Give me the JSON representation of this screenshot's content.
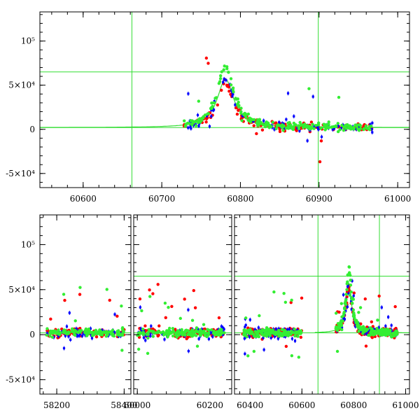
{
  "chart_data": [
    {
      "type": "scatter",
      "title": "",
      "xlabel": "",
      "ylabel": "",
      "xlim": [
        60545,
        61015
      ],
      "ylim": [
        -66000,
        133000
      ],
      "grid": false,
      "x_ticks": [
        {
          "value": 60600,
          "label": "60600"
        },
        {
          "value": 60700,
          "label": "60700"
        },
        {
          "value": 60800,
          "label": "60800"
        },
        {
          "value": 60900,
          "label": "60900"
        },
        {
          "value": 61000,
          "label": "61000"
        }
      ],
      "y_ticks": [
        {
          "value": -50000,
          "label": "-5×10⁴"
        },
        {
          "value": 0,
          "label": "0"
        },
        {
          "value": 50000,
          "label": "5×10⁴"
        },
        {
          "value": 100000,
          "label": "10⁵"
        }
      ],
      "reference_lines": {
        "vertical": [
          60662,
          60899
        ],
        "horizontal": [
          65000,
          2000
        ]
      },
      "model_curve": {
        "t0": 60781,
        "tE": 22,
        "base": 2000,
        "peak": 55000,
        "x_range": [
          60545,
          61015
        ],
        "color": "#33dd33"
      },
      "series": [
        {
          "color": "#ff0000",
          "seed": 11,
          "segments": [
            {
              "x": [
                60728,
                60968
              ],
              "n": 160
            }
          ],
          "peak_mult": 0.9,
          "noise": 3500,
          "outlier_rate": 0.05,
          "outlier_amp": 60000
        },
        {
          "color": "#0000ff",
          "seed": 23,
          "segments": [
            {
              "x": [
                60728,
                60968
              ],
              "n": 90
            }
          ],
          "peak_mult": 1.05,
          "noise": 4500,
          "outlier_rate": 0.08,
          "outlier_amp": 30000
        },
        {
          "color": "#33ee33",
          "seed": 37,
          "segments": [
            {
              "x": [
                60728,
                60968
              ],
              "n": 220
            }
          ],
          "peak_mult": 1.25,
          "noise": 3000,
          "outlier_rate": 0.05,
          "outlier_amp": 45000
        }
      ]
    },
    {
      "type": "scatter",
      "title": "",
      "xlabel": "",
      "ylabel": "",
      "broken_axis": true,
      "ylim": [
        -66000,
        133000
      ],
      "grid": false,
      "panels": [
        {
          "xlim": [
            58150,
            58420
          ],
          "x_ticks": [
            {
              "value": 58200,
              "label": "58200"
            },
            {
              "value": 58400,
              "label": "58400"
            }
          ],
          "vertical": [],
          "horizontal": [
            2000
          ]
        },
        {
          "xlim": [
            59990,
            60260
          ],
          "x_ticks": [
            {
              "value": 60000,
              "label": "60000"
            },
            {
              "value": 60200,
              "label": "60200"
            }
          ],
          "vertical": [],
          "horizontal": [
            65000,
            2000
          ]
        },
        {
          "xlim": [
            60340,
            61015
          ],
          "x_ticks": [
            {
              "value": 60400,
              "label": "60400"
            },
            {
              "value": 60600,
              "label": "60600"
            },
            {
              "value": 60800,
              "label": "60800"
            },
            {
              "value": 61000,
              "label": "61000"
            }
          ],
          "vertical": [
            60662,
            60899
          ],
          "horizontal": [
            65000,
            2000
          ]
        }
      ],
      "y_ticks": [
        {
          "value": -50000,
          "label": "-5×10⁴"
        },
        {
          "value": 0,
          "label": "0"
        },
        {
          "value": 50000,
          "label": "5×10⁴"
        },
        {
          "value": 100000,
          "label": "10⁵"
        }
      ],
      "model_curve": {
        "t0": 60781,
        "tE": 22,
        "base": 2000,
        "peak": 55000,
        "x_range": [
          60650,
          61015
        ],
        "color": "#33dd33"
      },
      "series": [
        {
          "color": "#ff0000",
          "seed": 51,
          "segments": [
            {
              "x": [
                58170,
                58400
              ],
              "n": 80
            },
            {
              "x": [
                60000,
                60240
              ],
              "n": 120
            },
            {
              "x": [
                60370,
                60600
              ],
              "n": 110
            },
            {
              "x": [
                60730,
                60968
              ],
              "n": 140
            }
          ],
          "peak_mult": 0.9,
          "noise": 3500,
          "outlier_rate": 0.08,
          "outlier_amp": 40000
        },
        {
          "color": "#0000ff",
          "seed": 63,
          "segments": [
            {
              "x": [
                58170,
                58400
              ],
              "n": 50
            },
            {
              "x": [
                60000,
                60240
              ],
              "n": 60
            },
            {
              "x": [
                60370,
                60600
              ],
              "n": 60
            },
            {
              "x": [
                60730,
                60968
              ],
              "n": 70
            }
          ],
          "peak_mult": 1.05,
          "noise": 4500,
          "outlier_rate": 0.08,
          "outlier_amp": 30000
        },
        {
          "color": "#33ee33",
          "seed": 77,
          "segments": [
            {
              "x": [
                58170,
                58400
              ],
              "n": 130
            },
            {
              "x": [
                60000,
                60240
              ],
              "n": 160
            },
            {
              "x": [
                60370,
                60600
              ],
              "n": 150
            },
            {
              "x": [
                60730,
                60968
              ],
              "n": 200
            }
          ],
          "peak_mult": 1.25,
          "noise": 3000,
          "outlier_rate": 0.08,
          "outlier_amp": 40000
        }
      ]
    }
  ]
}
